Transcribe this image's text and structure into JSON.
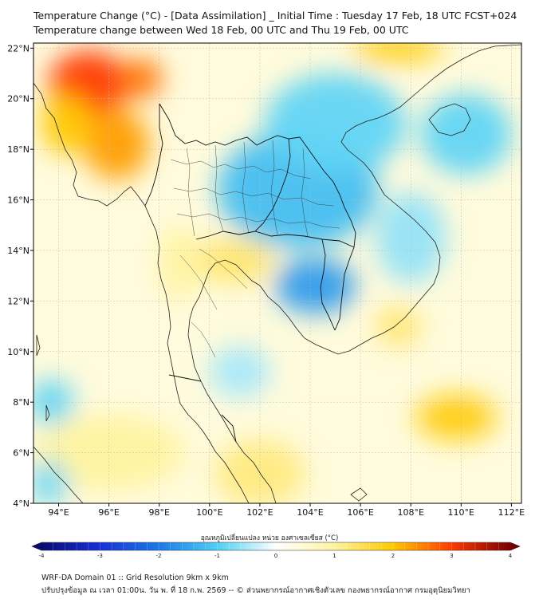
{
  "title": {
    "line1": "Temperature Change (°C) - [Data Assimilation] _ Initial Time : Tuesday 17 Feb, 18 UTC FCST+024",
    "line2": "Temperature change between Wed 18 Feb, 00 UTC and Thu 19 Feb, 00 UTC"
  },
  "map": {
    "lon_range": [
      93,
      112.4
    ],
    "lat_range": [
      4,
      22.2
    ],
    "lon_ticks": [
      "94°E",
      "96°E",
      "98°E",
      "100°E",
      "102°E",
      "104°E",
      "106°E",
      "108°E",
      "110°E",
      "112°E"
    ],
    "lon_tick_values": [
      94,
      96,
      98,
      100,
      102,
      104,
      106,
      108,
      110,
      112
    ],
    "lat_ticks": [
      "4°N",
      "6°N",
      "8°N",
      "10°N",
      "12°N",
      "14°N",
      "16°N",
      "18°N",
      "20°N",
      "22°N"
    ],
    "lat_tick_values": [
      4,
      6,
      8,
      10,
      12,
      14,
      16,
      18,
      20,
      22
    ],
    "field_blobs": [
      {
        "lon": 95.2,
        "lat": 20.6,
        "rx": 1.6,
        "ry": 1.3,
        "value": 3.0
      },
      {
        "lon": 97.3,
        "lat": 20.8,
        "rx": 0.8,
        "ry": 0.8,
        "value": 2.6
      },
      {
        "lon": 96.3,
        "lat": 18.2,
        "rx": 1.3,
        "ry": 1.4,
        "value": 2.3
      },
      {
        "lon": 94.3,
        "lat": 19.0,
        "rx": 1.0,
        "ry": 1.2,
        "value": 2.0
      },
      {
        "lon": 107.5,
        "lat": 22.0,
        "rx": 1.8,
        "ry": 0.6,
        "value": 1.8
      },
      {
        "lon": 103.5,
        "lat": 16.4,
        "rx": 3.2,
        "ry": 2.3,
        "value": -1.2
      },
      {
        "lon": 104.2,
        "lat": 12.6,
        "rx": 1.6,
        "ry": 1.1,
        "value": -1.6
      },
      {
        "lon": 105.0,
        "lat": 19.0,
        "rx": 2.8,
        "ry": 2.0,
        "value": -0.9
      },
      {
        "lon": 108.0,
        "lat": 14.5,
        "rx": 1.4,
        "ry": 1.8,
        "value": -0.6
      },
      {
        "lon": 101.0,
        "lat": 13.6,
        "rx": 1.6,
        "ry": 0.9,
        "value": 1.3
      },
      {
        "lon": 98.8,
        "lat": 13.5,
        "rx": 0.8,
        "ry": 1.5,
        "value": 1.0
      },
      {
        "lon": 107.5,
        "lat": 11.0,
        "rx": 0.9,
        "ry": 0.8,
        "value": 1.3
      },
      {
        "lon": 109.8,
        "lat": 7.4,
        "rx": 1.6,
        "ry": 0.9,
        "value": 1.9
      },
      {
        "lon": 96.0,
        "lat": 6.0,
        "rx": 3.0,
        "ry": 1.5,
        "value": 1.0
      },
      {
        "lon": 102.0,
        "lat": 5.2,
        "rx": 1.8,
        "ry": 1.3,
        "value": 1.2
      },
      {
        "lon": 93.7,
        "lat": 8.0,
        "rx": 0.9,
        "ry": 0.9,
        "value": -0.9
      },
      {
        "lon": 93.6,
        "lat": 4.8,
        "rx": 0.8,
        "ry": 0.9,
        "value": -0.8
      },
      {
        "lon": 101.2,
        "lat": 9.2,
        "rx": 1.2,
        "ry": 1.0,
        "value": -0.5
      },
      {
        "lon": 110.2,
        "lat": 18.6,
        "rx": 1.8,
        "ry": 1.6,
        "value": -0.9
      }
    ]
  },
  "colorbar": {
    "label": "อุณหภูมิเปลี่ยนแปลง หน่วย องศาเซลเซียส (°C)",
    "min": -4,
    "max": 4,
    "ticks": [
      "-4",
      "-3",
      "-2",
      "-1",
      "0",
      "1",
      "2",
      "3",
      "4"
    ],
    "tick_values": [
      -4,
      -3,
      -2,
      -1,
      0,
      1,
      2,
      3,
      4
    ],
    "stops": [
      {
        "v": -4,
        "c": "#0a0a70"
      },
      {
        "v": -3,
        "c": "#1830d8"
      },
      {
        "v": -2,
        "c": "#1a78e6"
      },
      {
        "v": -1,
        "c": "#4fd0f4"
      },
      {
        "v": 0,
        "c": "#ffffff"
      },
      {
        "v": 1,
        "c": "#fff3a0"
      },
      {
        "v": 2,
        "c": "#ffc800"
      },
      {
        "v": 3,
        "c": "#ff3a00"
      },
      {
        "v": 4,
        "c": "#7a0000"
      }
    ]
  },
  "footer": {
    "line1": "WRF-DA Domain 01 :: Grid Resolution 9km x 9km",
    "line2": "ปรับปรุงข้อมูล ณ เวลา 01:00น. วัน พ. ที่ 18 ก.พ. 2569 -- © ส่วนพยากรณ์อากาศเชิงตัวเลข กองพยากรณ์อากาศ กรมอุตุนิยมวิทยา"
  }
}
